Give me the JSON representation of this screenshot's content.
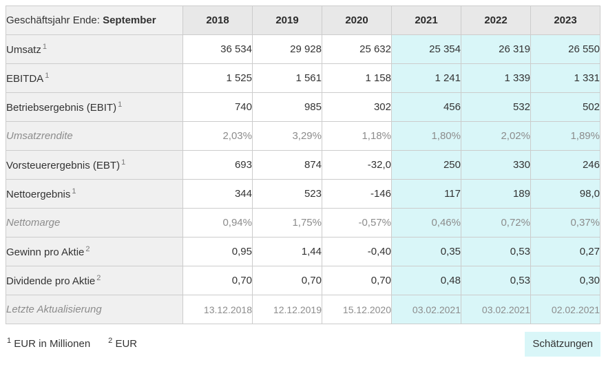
{
  "header": {
    "fiscal_label_normal": "Geschäftsjahr Ende: ",
    "fiscal_label_bold": "September",
    "years": [
      "2018",
      "2019",
      "2020",
      "2021",
      "2022",
      "2023"
    ]
  },
  "estimate_start_index": 3,
  "rows": [
    {
      "label": "Umsatz",
      "sup": "1",
      "muted": false,
      "values": [
        "36 534",
        "29 928",
        "25 632",
        "25 354",
        "26 319",
        "26 550"
      ]
    },
    {
      "label": "EBITDA",
      "sup": "1",
      "muted": false,
      "values": [
        "1 525",
        "1 561",
        "1 158",
        "1 241",
        "1 339",
        "1 331"
      ]
    },
    {
      "label": "Betriebsergebnis (EBIT)",
      "sup": "1",
      "muted": false,
      "values": [
        "740",
        "985",
        "302",
        "456",
        "532",
        "502"
      ]
    },
    {
      "label": "Umsatzrendite",
      "sup": "",
      "muted": true,
      "values": [
        "2,03%",
        "3,29%",
        "1,18%",
        "1,80%",
        "2,02%",
        "1,89%"
      ]
    },
    {
      "label": "Vorsteuerergebnis (EBT)",
      "sup": "1",
      "muted": false,
      "values": [
        "693",
        "874",
        "-32,0",
        "250",
        "330",
        "246"
      ]
    },
    {
      "label": "Nettoergebnis",
      "sup": "1",
      "muted": false,
      "values": [
        "344",
        "523",
        "-146",
        "117",
        "189",
        "98,0"
      ]
    },
    {
      "label": "Nettomarge",
      "sup": "",
      "muted": true,
      "values": [
        "0,94%",
        "1,75%",
        "-0,57%",
        "0,46%",
        "0,72%",
        "0,37%"
      ]
    },
    {
      "label": "Gewinn pro Aktie",
      "sup": "2",
      "muted": false,
      "values": [
        "0,95",
        "1,44",
        "-0,40",
        "0,35",
        "0,53",
        "0,27"
      ]
    },
    {
      "label": "Dividende pro Aktie",
      "sup": "2",
      "muted": false,
      "values": [
        "0,70",
        "0,70",
        "0,70",
        "0,48",
        "0,53",
        "0,30"
      ]
    },
    {
      "label": "Letzte Aktualisierung",
      "sup": "",
      "muted": true,
      "dates": true,
      "values": [
        "13.12.2018",
        "12.12.2019",
        "15.12.2020",
        "03.02.2021",
        "03.02.2021",
        "02.02.2021"
      ]
    }
  ],
  "footer": {
    "footnotes": [
      {
        "sup": "1",
        "text": "EUR in Millionen"
      },
      {
        "sup": "2",
        "text": "EUR"
      }
    ],
    "badge": "Schätzungen"
  },
  "colors": {
    "estimate_bg": "#d9f6f8",
    "header_year_bg": "#e8e8e8",
    "label_col_bg": "#f0f0f0",
    "border": "#cccccc",
    "text": "#333333",
    "muted_text": "#8c8c8c"
  },
  "chart_data": {
    "type": "table",
    "title": "Geschäftsjahr Ende: September",
    "categories": [
      "2018",
      "2019",
      "2020",
      "2021",
      "2022",
      "2023"
    ],
    "estimate_years": [
      "2021",
      "2022",
      "2023"
    ],
    "series": [
      {
        "name": "Umsatz (EUR Mio.)",
        "values": [
          36534,
          29928,
          25632,
          25354,
          26319,
          26550
        ]
      },
      {
        "name": "EBITDA (EUR Mio.)",
        "values": [
          1525,
          1561,
          1158,
          1241,
          1339,
          1331
        ]
      },
      {
        "name": "Betriebsergebnis (EBIT) (EUR Mio.)",
        "values": [
          740,
          985,
          302,
          456,
          532,
          502
        ]
      },
      {
        "name": "Umsatzrendite (%)",
        "values": [
          2.03,
          3.29,
          1.18,
          1.8,
          2.02,
          1.89
        ]
      },
      {
        "name": "Vorsteuerergebnis (EBT) (EUR Mio.)",
        "values": [
          693,
          874,
          -32.0,
          250,
          330,
          246
        ]
      },
      {
        "name": "Nettoergebnis (EUR Mio.)",
        "values": [
          344,
          523,
          -146,
          117,
          189,
          98.0
        ]
      },
      {
        "name": "Nettomarge (%)",
        "values": [
          0.94,
          1.75,
          -0.57,
          0.46,
          0.72,
          0.37
        ]
      },
      {
        "name": "Gewinn pro Aktie (EUR)",
        "values": [
          0.95,
          1.44,
          -0.4,
          0.35,
          0.53,
          0.27
        ]
      },
      {
        "name": "Dividende pro Aktie (EUR)",
        "values": [
          0.7,
          0.7,
          0.7,
          0.48,
          0.53,
          0.3
        ]
      },
      {
        "name": "Letzte Aktualisierung",
        "values": [
          "13.12.2018",
          "12.12.2019",
          "15.12.2020",
          "03.02.2021",
          "03.02.2021",
          "02.02.2021"
        ]
      }
    ],
    "footnotes": [
      "1 EUR in Millionen",
      "2 EUR"
    ],
    "legend": "Schätzungen"
  }
}
